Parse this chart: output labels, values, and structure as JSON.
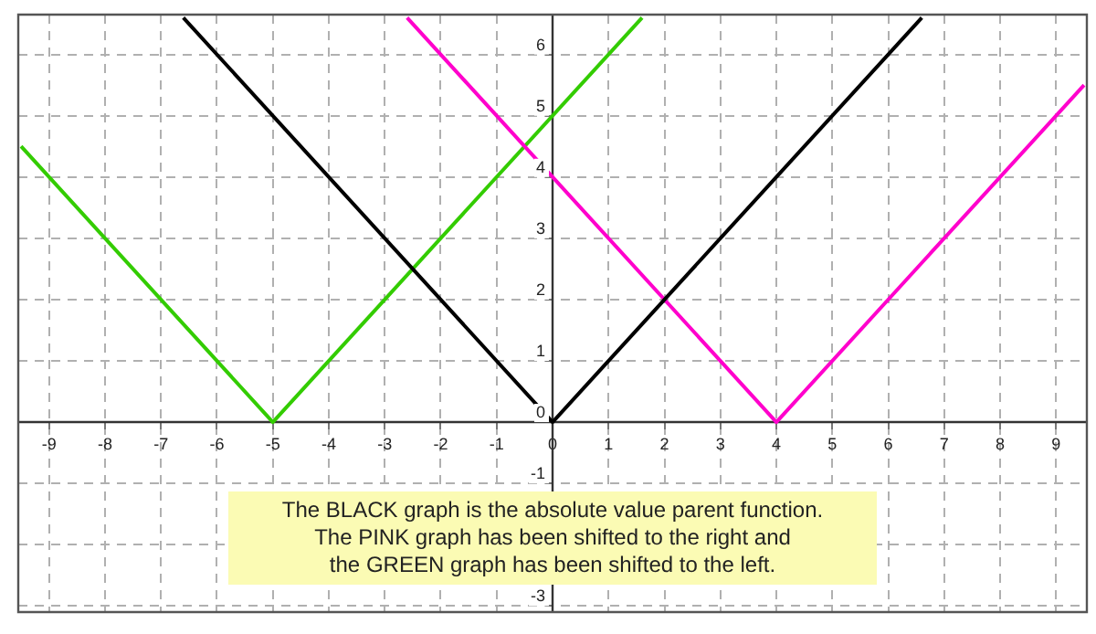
{
  "chart_data": {
    "type": "line",
    "series": [
      {
        "color": "#000000",
        "x": [
          -6.6,
          0,
          6.6
        ],
        "values": [
          6.6,
          0,
          6.6
        ]
      },
      {
        "color": "#ff00cc",
        "x": [
          -2.6,
          4,
          9.5
        ],
        "values": [
          6.6,
          0,
          5.5
        ]
      },
      {
        "color": "#33cc00",
        "x": [
          -9.5,
          -5,
          1.6
        ],
        "values": [
          4.5,
          0,
          6.6
        ]
      }
    ],
    "xlim": [
      -9.55,
      9.55
    ],
    "ylim": [
      -3.1,
      6.65
    ],
    "xticks": [
      -9,
      -8,
      -7,
      -6,
      -5,
      -4,
      -3,
      -2,
      -1,
      0,
      1,
      2,
      3,
      4,
      5,
      6,
      7,
      8,
      9
    ],
    "yticks": [
      -3,
      {
        "value": -2,
        "label": null
      },
      -1,
      0,
      1,
      2,
      3,
      4,
      5,
      6
    ],
    "grid": true,
    "legend": false,
    "marker": "none",
    "line_style": "solid",
    "annotations": [
      "The BLACK graph is the absolute value parent function.",
      "The PINK graph has been shifted to the right and",
      "the GREEN graph has been shifted to the left."
    ]
  }
}
